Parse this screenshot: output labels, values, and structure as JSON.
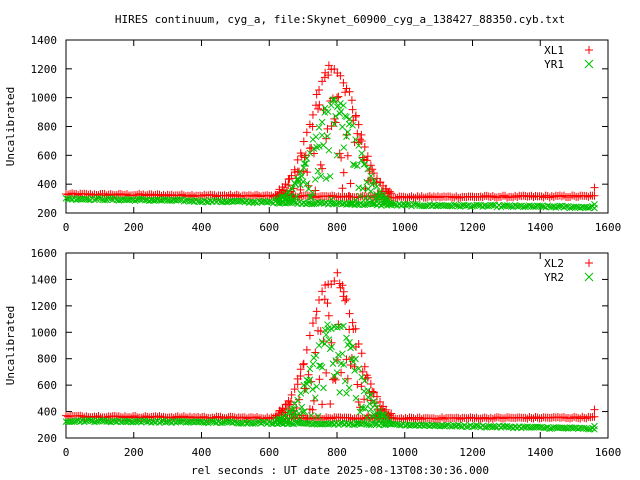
{
  "figure": {
    "title": "HIRES continuum, cyg_a, file:Skynet_60900_cyg_a_138427_88350.cyb.txt",
    "xlabel": "rel seconds : UT date 2025-08-13T08:30:36.000"
  },
  "chart_data": [
    {
      "type": "scatter",
      "ylabel": "Uncalibrated",
      "xlim": [
        0,
        1600
      ],
      "ylim": [
        200,
        1400
      ],
      "xticks": [
        0,
        200,
        400,
        600,
        800,
        1000,
        1200,
        1400,
        1600
      ],
      "yticks": [
        200,
        400,
        600,
        800,
        1000,
        1200,
        1400
      ],
      "legend": "top-right",
      "grid": false,
      "series": [
        {
          "name": "XL1",
          "marker": "plus",
          "color": "#ff0000",
          "baseline": [
            [
              0,
              330
            ],
            [
              600,
              318
            ],
            [
              1000,
              310
            ],
            [
              1560,
              316
            ]
          ],
          "peak_x": 790,
          "peak_y": 1270,
          "peak_range": [
            620,
            960
          ]
        },
        {
          "name": "YR1",
          "marker": "cross",
          "color": "#00c000",
          "baseline": [
            [
              0,
              300
            ],
            [
              600,
              275
            ],
            [
              1000,
              255
            ],
            [
              1560,
              240
            ]
          ],
          "peak_x": 795,
          "peak_y": 1010,
          "peak_range": [
            620,
            960
          ]
        }
      ]
    },
    {
      "type": "scatter",
      "ylabel": "Uncalibrated",
      "xlim": [
        0,
        1600
      ],
      "ylim": [
        200,
        1600
      ],
      "xticks": [
        0,
        200,
        400,
        600,
        800,
        1000,
        1200,
        1400,
        1600
      ],
      "yticks": [
        200,
        400,
        600,
        800,
        1000,
        1200,
        1400,
        1600
      ],
      "legend": "top-right",
      "grid": false,
      "series": [
        {
          "name": "XL2",
          "marker": "plus",
          "color": "#ff0000",
          "baseline": [
            [
              0,
              365
            ],
            [
              600,
              352
            ],
            [
              1000,
              348
            ],
            [
              1560,
              355
            ]
          ],
          "peak_x": 790,
          "peak_y": 1470,
          "peak_range": [
            620,
            960
          ]
        },
        {
          "name": "YR2",
          "marker": "cross",
          "color": "#00c000",
          "baseline": [
            [
              0,
              330
            ],
            [
              600,
              315
            ],
            [
              1000,
              300
            ],
            [
              1560,
              270
            ]
          ],
          "peak_x": 795,
          "peak_y": 1110,
          "peak_range": [
            620,
            960
          ]
        }
      ]
    }
  ]
}
